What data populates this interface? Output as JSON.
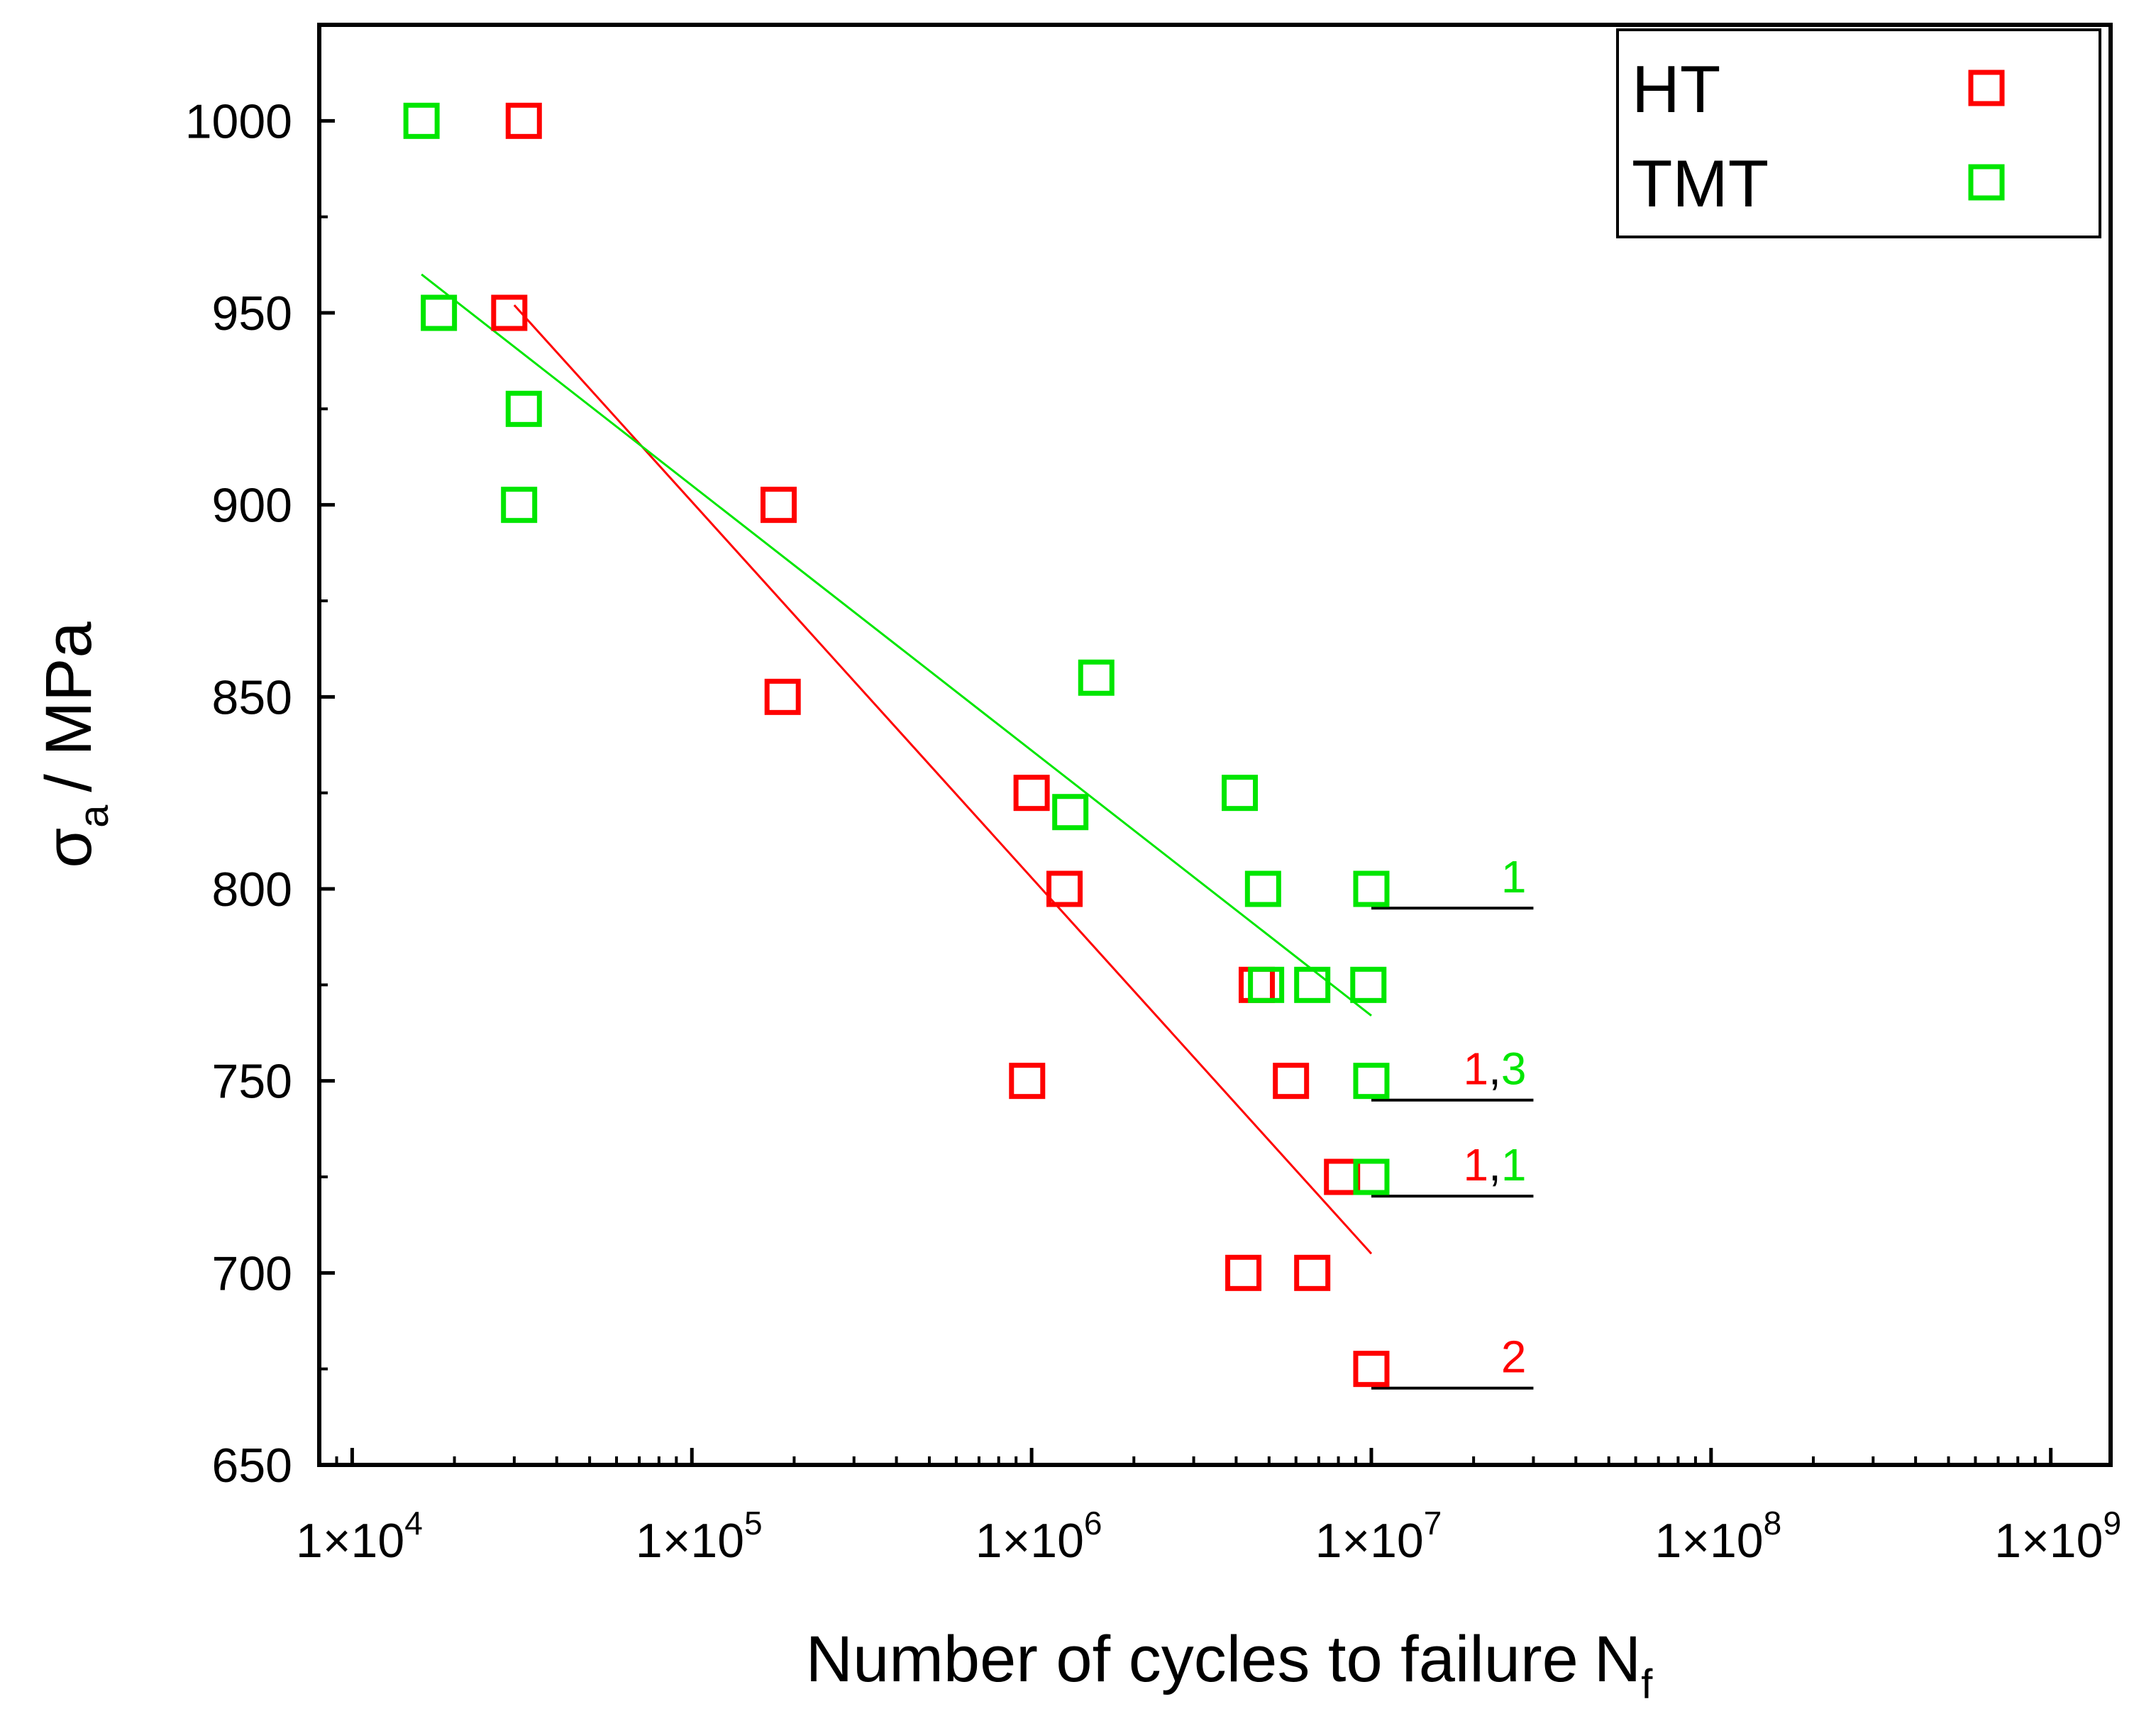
{
  "chart_data": {
    "type": "scatter",
    "title": "",
    "xlabel": "Number of cycles to failure",
    "xlabel_sub": "f",
    "xlabel_sym": "N",
    "ylabel": "/ MPa",
    "ylabel_sym": "σ",
    "ylabel_sub": "a",
    "xscale": "log",
    "xlim": [
      8000,
      1500000000
    ],
    "ylim": [
      650,
      1025
    ],
    "xticks": [
      {
        "value": 10000,
        "mantissa": "1×10",
        "exp": "4"
      },
      {
        "value": 100000,
        "mantissa": "1×10",
        "exp": "5"
      },
      {
        "value": 1000000,
        "mantissa": "1×10",
        "exp": "6"
      },
      {
        "value": 10000000,
        "mantissa": "1×10",
        "exp": "7"
      },
      {
        "value": 100000000,
        "mantissa": "1×10",
        "exp": "8"
      },
      {
        "value": 1000000000,
        "mantissa": "1×10",
        "exp": "9"
      }
    ],
    "yticks": [
      650,
      700,
      750,
      800,
      850,
      900,
      950,
      1000
    ],
    "legend_position": "top-right",
    "series": [
      {
        "name": "HT",
        "color": "#ff0000",
        "marker": "open-square",
        "points": [
          [
            32000,
            1000
          ],
          [
            29000,
            950
          ],
          [
            180000,
            900
          ],
          [
            185000,
            850
          ],
          [
            1000000,
            825
          ],
          [
            1250000,
            800
          ],
          [
            4600000,
            775
          ],
          [
            970000,
            750
          ],
          [
            5800000,
            750
          ],
          [
            8200000,
            725
          ],
          [
            4200000,
            700
          ],
          [
            6700000,
            700
          ],
          [
            10000000,
            675
          ]
        ],
        "fit": {
          "from": [
            30000,
            952
          ],
          "to": [
            10000000,
            705
          ]
        }
      },
      {
        "name": "TMT",
        "color": "#00e600",
        "marker": "open-square",
        "points": [
          [
            16000,
            1000
          ],
          [
            18000,
            950
          ],
          [
            32000,
            925
          ],
          [
            31000,
            900
          ],
          [
            1550000,
            855
          ],
          [
            1300000,
            820
          ],
          [
            4100000,
            825
          ],
          [
            4800000,
            800
          ],
          [
            10000000,
            800
          ],
          [
            4900000,
            775
          ],
          [
            6700000,
            775
          ],
          [
            9800000,
            775
          ],
          [
            10000000,
            750
          ],
          [
            10000000,
            725
          ]
        ],
        "fit": {
          "from": [
            16000,
            960
          ],
          "to": [
            10000000,
            767
          ]
        }
      }
    ],
    "runouts": [
      {
        "stress": 795,
        "labels": [
          {
            "text": "1",
            "color": "#00e600"
          }
        ]
      },
      {
        "stress": 745,
        "labels": [
          {
            "text": "1",
            "color": "#ff0000"
          },
          {
            "text": ",",
            "color": "#000000"
          },
          {
            "text": "3",
            "color": "#00e600"
          }
        ]
      },
      {
        "stress": 720,
        "labels": [
          {
            "text": "1",
            "color": "#ff0000"
          },
          {
            "text": ",",
            "color": "#000000"
          },
          {
            "text": "1",
            "color": "#00e600"
          }
        ]
      },
      {
        "stress": 670,
        "labels": [
          {
            "text": "2",
            "color": "#ff0000"
          }
        ]
      }
    ],
    "runout_x_range": [
      10000000,
      30000000
    ]
  }
}
